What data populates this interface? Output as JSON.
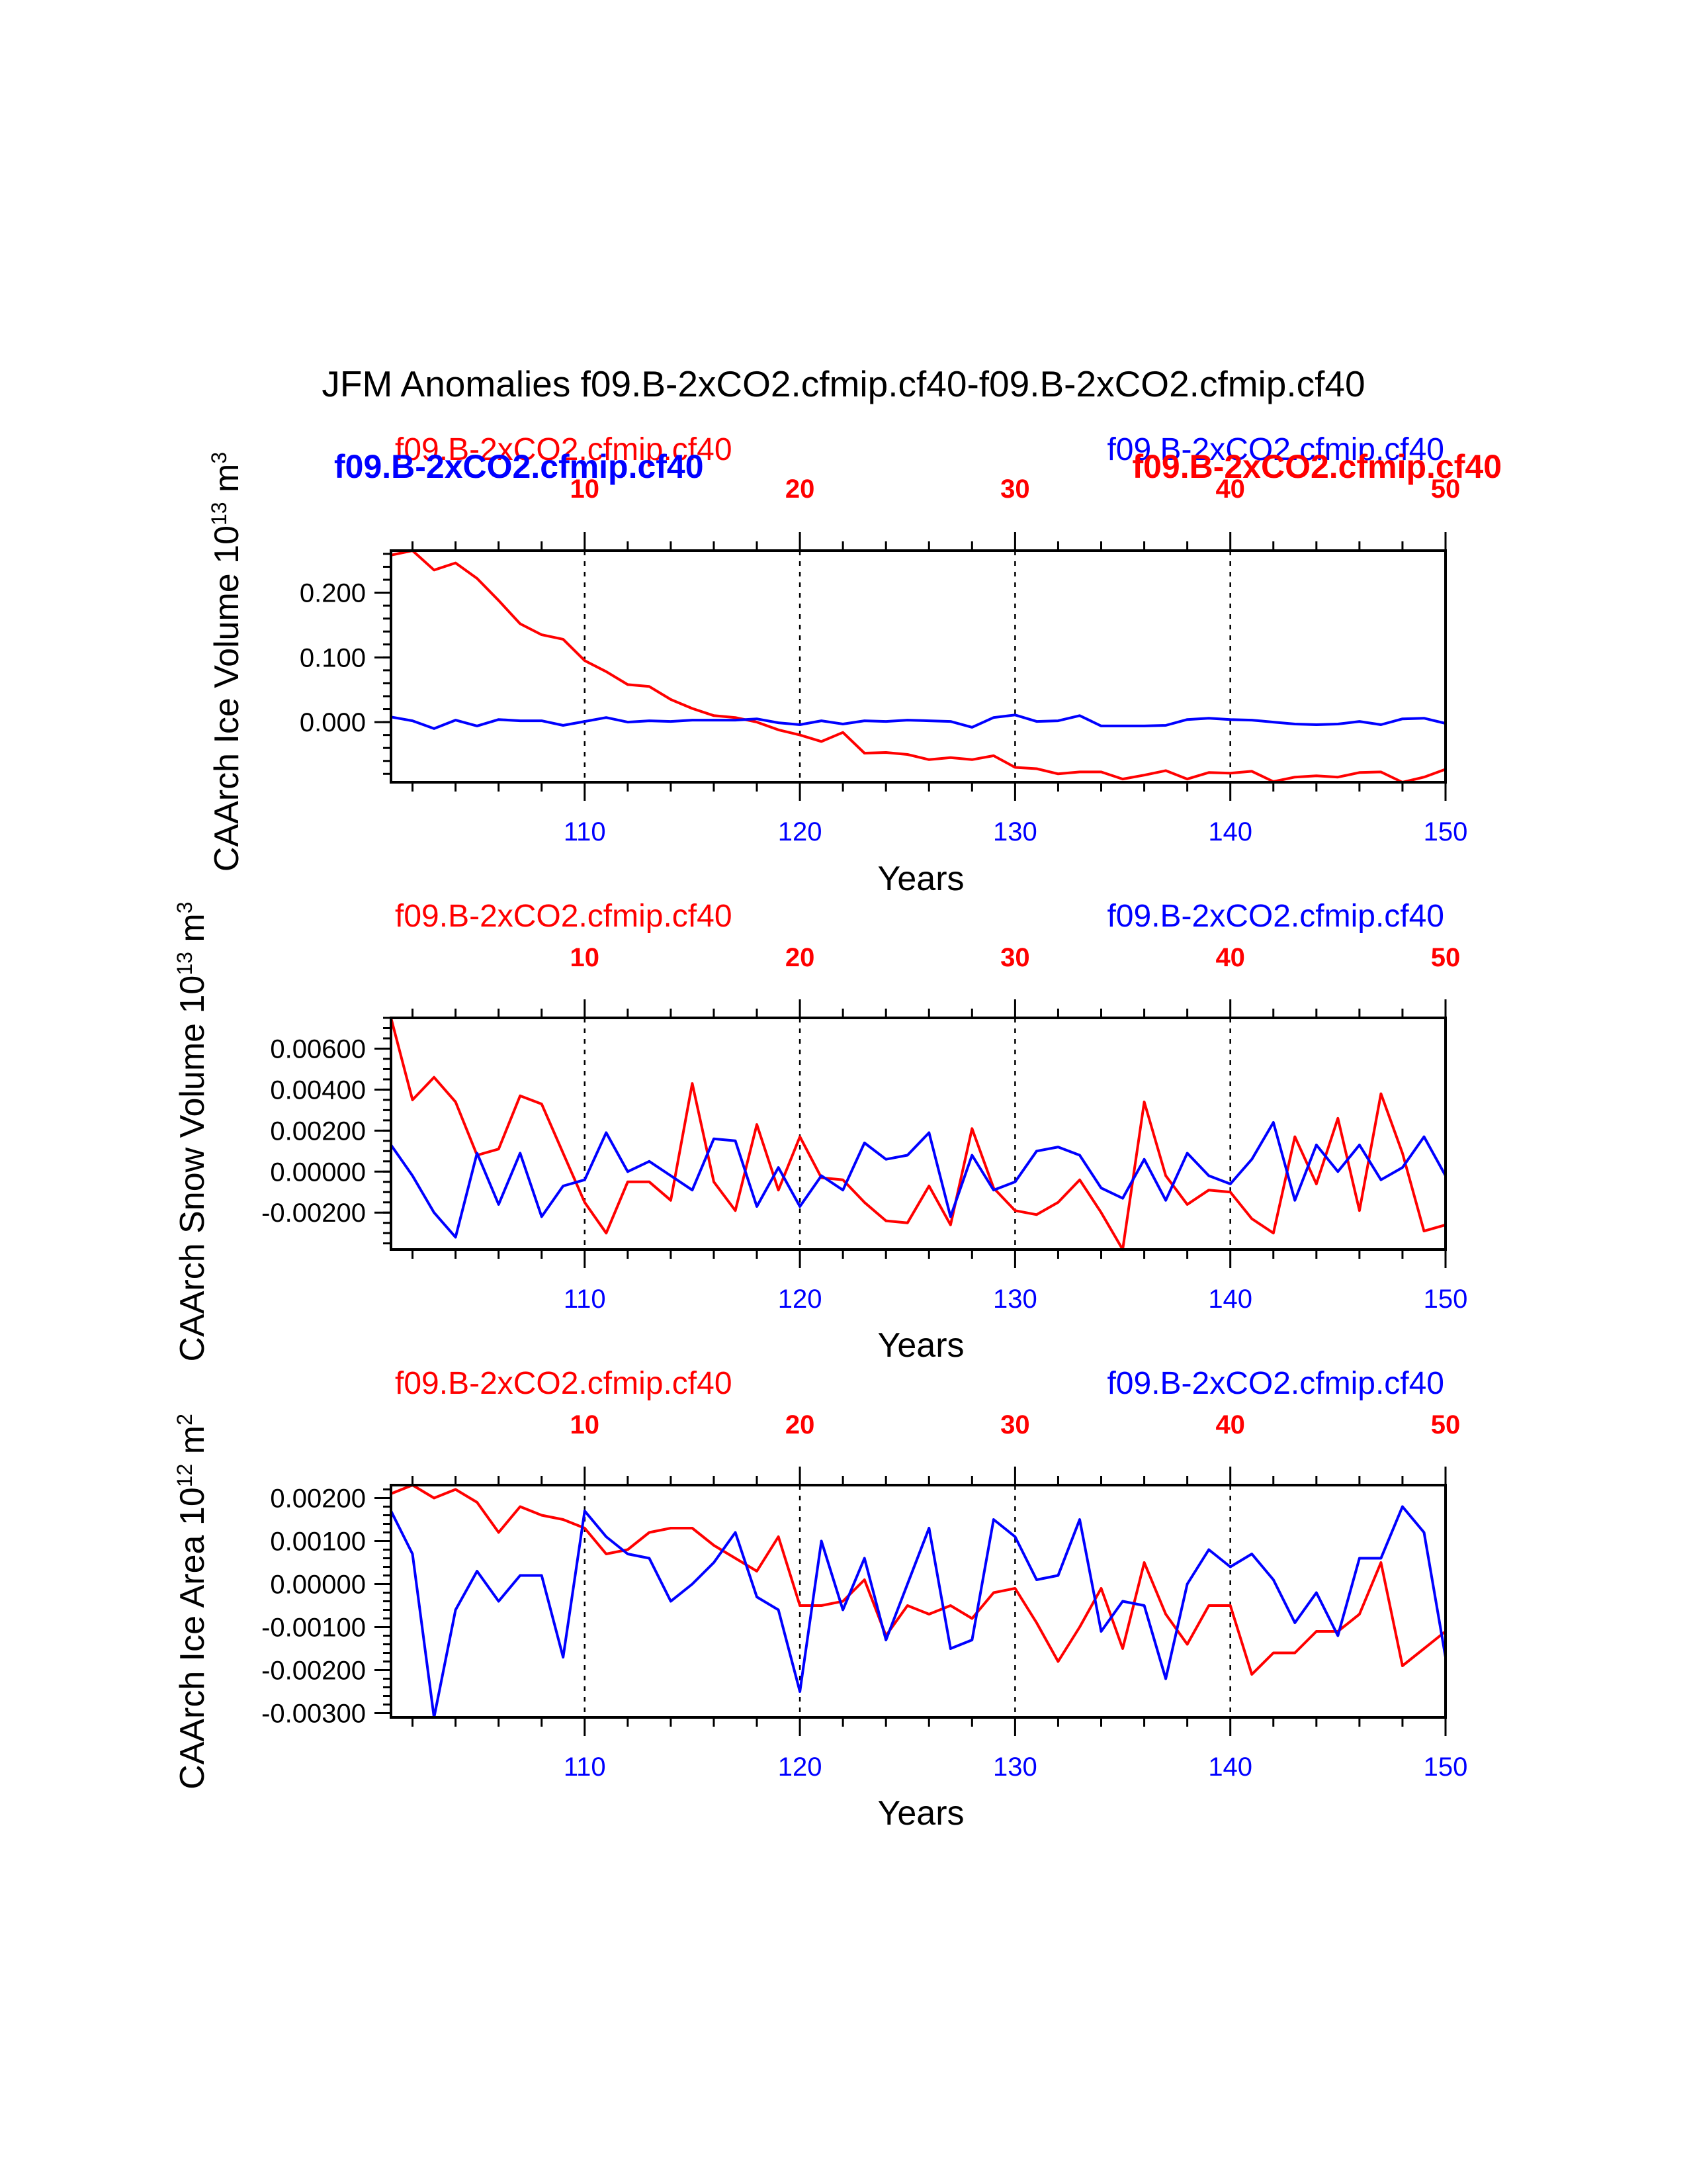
{
  "title": "JFM Anomalies f09.B-2xCO2.cfmip.cf40-f09.B-2xCO2.cfmip.cf40",
  "colors": {
    "series_a": "#ff0000",
    "series_b": "#0000ff",
    "axis": "#000000"
  },
  "chart_data": [
    {
      "type": "line",
      "panel": "ice-volume",
      "ylabel": "CAArch Ice Volume 10",
      "ylabel_exp": "13",
      "ylabel_unit": " m",
      "ylabel_unit_exp": "3",
      "xlabel": "Years",
      "ylim": [
        -0.093,
        0.265
      ],
      "yticks": [
        0.0,
        0.1,
        0.2
      ],
      "ytick_labels": [
        "0.000",
        "0.100",
        "0.200"
      ],
      "yminor": 0.02,
      "xlim": [
        101,
        150
      ],
      "xticks_bottom": [
        110,
        120,
        130,
        140,
        150
      ],
      "xticks_top": [
        10,
        20,
        30,
        40,
        50
      ],
      "top_offset": 100,
      "vlines": [
        110,
        120,
        130,
        140
      ],
      "series_labels": {
        "left_red": "f09.B-2xCO2.cfmip.cf40",
        "right_blue": "f09.B-2xCO2.cfmip.cf40",
        "left_blue_bold": "f09.B-2xCO2.cfmip.cf40",
        "right_red_bold": "f09.B-2xCO2.cfmip.cf40"
      },
      "x": [
        101,
        102,
        103,
        104,
        105,
        106,
        107,
        108,
        109,
        110,
        111,
        112,
        113,
        114,
        115,
        116,
        117,
        118,
        119,
        120,
        121,
        122,
        123,
        124,
        125,
        126,
        127,
        128,
        129,
        130,
        131,
        132,
        133,
        134,
        135,
        136,
        137,
        138,
        139,
        140,
        141,
        142,
        143,
        144,
        145,
        146,
        147,
        148,
        149,
        150
      ],
      "series": [
        {
          "name": "f09.B-2xCO2.cfmip.cf40 (red)",
          "color": "#ff0000",
          "values": [
            0.258,
            0.265,
            0.235,
            0.246,
            0.222,
            0.188,
            0.152,
            0.135,
            0.128,
            0.095,
            0.078,
            0.058,
            0.055,
            0.035,
            0.021,
            0.01,
            0.007,
            0.0,
            -0.012,
            -0.02,
            -0.03,
            -0.016,
            -0.048,
            -0.047,
            -0.05,
            -0.058,
            -0.055,
            -0.058,
            -0.052,
            -0.07,
            -0.072,
            -0.08,
            -0.077,
            -0.077,
            -0.088,
            -0.082,
            -0.075,
            -0.088,
            -0.078,
            -0.079,
            -0.076,
            -0.092,
            -0.085,
            -0.083,
            -0.085,
            -0.078,
            -0.077,
            -0.093,
            -0.085,
            -0.073
          ]
        },
        {
          "name": "f09.B-2xCO2.cfmip.cf40 (blue)",
          "color": "#0000ff",
          "values": [
            0.008,
            0.002,
            -0.01,
            0.003,
            -0.006,
            0.004,
            0.002,
            0.002,
            -0.005,
            0.001,
            0.007,
            0.0,
            0.002,
            0.001,
            0.003,
            0.003,
            0.003,
            0.005,
            -0.001,
            -0.004,
            0.002,
            -0.003,
            0.002,
            0.001,
            0.003,
            0.002,
            0.001,
            -0.008,
            0.007,
            0.011,
            0.001,
            0.002,
            0.01,
            -0.006,
            -0.006,
            -0.006,
            -0.005,
            0.004,
            0.006,
            0.004,
            0.003,
            0.0,
            -0.003,
            -0.004,
            -0.003,
            0.001,
            -0.004,
            0.005,
            0.006,
            -0.002
          ]
        }
      ]
    },
    {
      "type": "line",
      "panel": "snow-volume",
      "ylabel": "CAArch Snow Volume 10",
      "ylabel_exp": "13",
      "ylabel_unit": " m",
      "ylabel_unit_exp": "3",
      "xlabel": "Years",
      "ylim": [
        -0.0038,
        0.0075
      ],
      "yticks": [
        -0.002,
        0.0,
        0.002,
        0.004,
        0.006
      ],
      "ytick_labels": [
        "-0.00200",
        "0.00000",
        "0.00200",
        "0.00400",
        "0.00600"
      ],
      "yminor": 0.0005,
      "xlim": [
        101,
        150
      ],
      "xticks_bottom": [
        110,
        120,
        130,
        140,
        150
      ],
      "xticks_top": [
        10,
        20,
        30,
        40,
        50
      ],
      "top_offset": 100,
      "vlines": [
        110,
        120,
        130,
        140
      ],
      "series_labels": {
        "left_red": "f09.B-2xCO2.cfmip.cf40",
        "right_blue": "f09.B-2xCO2.cfmip.cf40"
      },
      "x": [
        101,
        102,
        103,
        104,
        105,
        106,
        107,
        108,
        109,
        110,
        111,
        112,
        113,
        114,
        115,
        116,
        117,
        118,
        119,
        120,
        121,
        122,
        123,
        124,
        125,
        126,
        127,
        128,
        129,
        130,
        131,
        132,
        133,
        134,
        135,
        136,
        137,
        138,
        139,
        140,
        141,
        142,
        143,
        144,
        145,
        146,
        147,
        148,
        149,
        150
      ],
      "series": [
        {
          "name": "f09.B-2xCO2.cfmip.cf40 (red)",
          "color": "#ff0000",
          "values": [
            0.0075,
            0.0035,
            0.0046,
            0.0034,
            0.0008,
            0.0011,
            0.0037,
            0.0033,
            0.0009,
            -0.0015,
            -0.003,
            -0.0005,
            -0.0005,
            -0.0014,
            0.0043,
            -0.0005,
            -0.0019,
            0.0023,
            -0.0009,
            0.0017,
            -0.0003,
            -0.0004,
            -0.0015,
            -0.0024,
            -0.0025,
            -0.0007,
            -0.0026,
            0.0021,
            -0.0008,
            -0.0019,
            -0.0021,
            -0.0015,
            -0.0004,
            -0.002,
            -0.0038,
            0.0034,
            -0.0002,
            -0.0016,
            -0.0009,
            -0.001,
            -0.0023,
            -0.003,
            0.0017,
            -0.0006,
            0.0026,
            -0.0019,
            0.0038,
            0.0009,
            -0.0029,
            -0.0026
          ]
        },
        {
          "name": "f09.B-2xCO2.cfmip.cf40 (blue)",
          "color": "#0000ff",
          "values": [
            0.0013,
            -0.0002,
            -0.002,
            -0.0032,
            0.0009,
            -0.0016,
            0.0009,
            -0.0022,
            -0.0007,
            -0.0004,
            0.0019,
            0.0,
            0.0005,
            -0.0002,
            -0.0009,
            0.0016,
            0.0015,
            -0.0017,
            0.0002,
            -0.0017,
            -0.0002,
            -0.0009,
            0.0014,
            0.0006,
            0.0008,
            0.0019,
            -0.0022,
            0.0008,
            -0.0009,
            -0.0005,
            0.001,
            0.0012,
            0.0008,
            -0.0008,
            -0.0013,
            0.0006,
            -0.0014,
            0.0009,
            -0.0002,
            -0.0006,
            0.0006,
            0.0024,
            -0.0014,
            0.0013,
            0.0,
            0.0013,
            -0.0004,
            0.0002,
            0.0017,
            -0.0002
          ]
        }
      ]
    },
    {
      "type": "line",
      "panel": "ice-area",
      "ylabel": "CAArch Ice Area 10",
      "ylabel_exp": "12",
      "ylabel_unit": " m",
      "ylabel_unit_exp": "2",
      "xlabel": "Years",
      "ylim": [
        -0.0031,
        0.0023
      ],
      "yticks": [
        -0.003,
        -0.002,
        -0.001,
        0.0,
        0.001,
        0.002
      ],
      "ytick_labels": [
        "-0.00300",
        "-0.00200",
        "-0.00100",
        "0.00000",
        "0.00100",
        "0.00200"
      ],
      "yminor": 0.0002,
      "xlim": [
        101,
        150
      ],
      "xticks_bottom": [
        110,
        120,
        130,
        140,
        150
      ],
      "xticks_top": [
        10,
        20,
        30,
        40,
        50
      ],
      "top_offset": 100,
      "vlines": [
        110,
        120,
        130,
        140
      ],
      "series_labels": {
        "left_red": "f09.B-2xCO2.cfmip.cf40",
        "right_blue": "f09.B-2xCO2.cfmip.cf40"
      },
      "x": [
        101,
        102,
        103,
        104,
        105,
        106,
        107,
        108,
        109,
        110,
        111,
        112,
        113,
        114,
        115,
        116,
        117,
        118,
        119,
        120,
        121,
        122,
        123,
        124,
        125,
        126,
        127,
        128,
        129,
        130,
        131,
        132,
        133,
        134,
        135,
        136,
        137,
        138,
        139,
        140,
        141,
        142,
        143,
        144,
        145,
        146,
        147,
        148,
        149,
        150
      ],
      "series": [
        {
          "name": "f09.B-2xCO2.cfmip.cf40 (red)",
          "color": "#ff0000",
          "values": [
            0.0021,
            0.0023,
            0.002,
            0.0022,
            0.0019,
            0.0012,
            0.0018,
            0.0016,
            0.0015,
            0.0013,
            0.0007,
            0.0008,
            0.0012,
            0.0013,
            0.0013,
            0.0009,
            0.0006,
            0.0003,
            0.0011,
            -0.0005,
            -0.0005,
            -0.0004,
            0.0001,
            -0.0012,
            -0.0005,
            -0.0007,
            -0.0005,
            -0.0008,
            -0.0002,
            -0.0001,
            -0.0009,
            -0.0018,
            -0.001,
            -0.0001,
            -0.0015,
            0.0005,
            -0.0007,
            -0.0014,
            -0.0005,
            -0.0005,
            -0.0021,
            -0.0016,
            -0.0016,
            -0.0011,
            -0.0011,
            -0.0007,
            0.0005,
            -0.0019,
            -0.0015,
            -0.0011
          ]
        },
        {
          "name": "f09.B-2xCO2.cfmip.cf40 (blue)",
          "color": "#0000ff",
          "values": [
            0.0017,
            0.0007,
            -0.0031,
            -0.0006,
            0.0003,
            -0.0004,
            0.0002,
            0.0002,
            -0.0017,
            0.0017,
            0.0011,
            0.0007,
            0.0006,
            -0.0004,
            0.0,
            0.0005,
            0.0012,
            -0.0003,
            -0.0006,
            -0.0025,
            0.001,
            -0.0006,
            0.0006,
            -0.0013,
            0.0,
            0.0013,
            -0.0015,
            -0.0013,
            0.0015,
            0.0011,
            0.0001,
            0.0002,
            0.0015,
            -0.0011,
            -0.0004,
            -0.0005,
            -0.0022,
            0.0,
            0.0008,
            0.0004,
            0.0007,
            0.0001,
            -0.0009,
            -0.0002,
            -0.0012,
            0.0006,
            0.0006,
            0.0018,
            0.0012,
            -0.0017
          ]
        }
      ]
    }
  ]
}
